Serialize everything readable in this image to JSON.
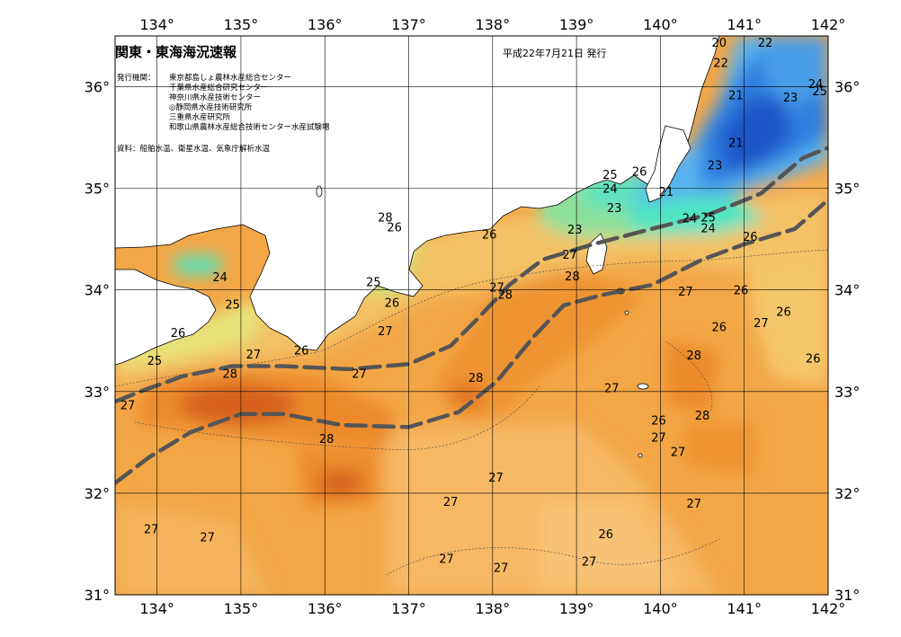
{
  "title": "関東・東海海況速報",
  "issue_date": "平成22年7月21日 発行",
  "publisher_label": "発行機関：",
  "publishers": [
    "東京都島しょ農林水産総合センター",
    "千葉県水産総合研究センター",
    "神奈川県水産技術センター",
    "◎静岡県水産技術研究所",
    "三重県水産研究所",
    "和歌山県農林水産総合技術センター水産試験場"
  ],
  "source": "資料：船舶水温、衛星水温、気象庁解析水温",
  "axes": {
    "lon_labels": [
      "134°",
      "135°",
      "136°",
      "137°",
      "138°",
      "139°",
      "140°",
      "141°",
      "142°"
    ],
    "lat_labels": [
      "36°",
      "35°",
      "34°",
      "33°",
      "32°",
      "31°"
    ],
    "lon_range": [
      133.5,
      142.0
    ],
    "lat_range": [
      31.0,
      36.5
    ]
  },
  "colors": {
    "t20": "#1c57c8",
    "t21": "#2d7ee0",
    "t22": "#58b2ef",
    "t23": "#8fd4ef",
    "t24": "#4fe6c2",
    "t25": "#b8ef7e",
    "t26": "#f5e276",
    "t27": "#f3b55a",
    "t28": "#ec8f2c",
    "t29": "#d6601a",
    "land": "#ffffff",
    "kuroshio": "#555555"
  },
  "isotherm_labels": [
    {
      "text": "20",
      "lon": 140.7,
      "lat": 36.44
    },
    {
      "text": "22",
      "lon": 141.25,
      "lat": 36.44
    },
    {
      "text": "22",
      "lon": 140.72,
      "lat": 36.24
    },
    {
      "text": "21",
      "lon": 140.9,
      "lat": 35.92
    },
    {
      "text": "24",
      "lon": 141.85,
      "lat": 36.03
    },
    {
      "text": "25",
      "lon": 141.9,
      "lat": 35.96
    },
    {
      "text": "23",
      "lon": 141.55,
      "lat": 35.9
    },
    {
      "text": "21",
      "lon": 140.9,
      "lat": 35.45
    },
    {
      "text": "23",
      "lon": 140.65,
      "lat": 35.23
    },
    {
      "text": "25",
      "lon": 139.4,
      "lat": 35.14
    },
    {
      "text": "26",
      "lon": 139.75,
      "lat": 35.17
    },
    {
      "text": "24",
      "lon": 139.4,
      "lat": 35.0
    },
    {
      "text": "21",
      "lon": 140.07,
      "lat": 34.97
    },
    {
      "text": "23",
      "lon": 139.45,
      "lat": 34.81
    },
    {
      "text": "24",
      "lon": 140.35,
      "lat": 34.71
    },
    {
      "text": "25",
      "lon": 140.57,
      "lat": 34.72
    },
    {
      "text": "24",
      "lon": 140.57,
      "lat": 34.61
    },
    {
      "text": "23",
      "lon": 138.98,
      "lat": 34.6
    },
    {
      "text": "26",
      "lon": 141.07,
      "lat": 34.53
    },
    {
      "text": "26",
      "lon": 137.96,
      "lat": 34.55
    },
    {
      "text": "28",
      "lon": 136.72,
      "lat": 34.72
    },
    {
      "text": "26",
      "lon": 136.83,
      "lat": 34.62
    },
    {
      "text": "24",
      "lon": 134.75,
      "lat": 34.13
    },
    {
      "text": "25",
      "lon": 136.58,
      "lat": 34.08
    },
    {
      "text": "27",
      "lon": 138.92,
      "lat": 34.35
    },
    {
      "text": "28",
      "lon": 138.95,
      "lat": 34.14
    },
    {
      "text": "27",
      "lon": 138.05,
      "lat": 34.03
    },
    {
      "text": "28",
      "lon": 138.15,
      "lat": 33.96
    },
    {
      "text": "25",
      "lon": 134.9,
      "lat": 33.86
    },
    {
      "text": "26",
      "lon": 136.8,
      "lat": 33.88
    },
    {
      "text": "27",
      "lon": 140.3,
      "lat": 33.99
    },
    {
      "text": "26",
      "lon": 140.96,
      "lat": 34.0
    },
    {
      "text": "26",
      "lon": 141.47,
      "lat": 33.79
    },
    {
      "text": "27",
      "lon": 141.2,
      "lat": 33.68
    },
    {
      "text": "26",
      "lon": 140.7,
      "lat": 33.64
    },
    {
      "text": "26",
      "lon": 134.25,
      "lat": 33.58
    },
    {
      "text": "27",
      "lon": 136.72,
      "lat": 33.6
    },
    {
      "text": "26",
      "lon": 135.72,
      "lat": 33.41
    },
    {
      "text": "25",
      "lon": 133.97,
      "lat": 33.31
    },
    {
      "text": "27",
      "lon": 135.15,
      "lat": 33.37
    },
    {
      "text": "28",
      "lon": 140.4,
      "lat": 33.36
    },
    {
      "text": "26",
      "lon": 141.82,
      "lat": 33.33
    },
    {
      "text": "28",
      "lon": 134.87,
      "lat": 33.18
    },
    {
      "text": "27",
      "lon": 136.41,
      "lat": 33.18
    },
    {
      "text": "28",
      "lon": 137.8,
      "lat": 33.14
    },
    {
      "text": "27",
      "lon": 139.42,
      "lat": 33.04
    },
    {
      "text": "27",
      "lon": 133.65,
      "lat": 32.87
    },
    {
      "text": "28",
      "lon": 140.5,
      "lat": 32.77
    },
    {
      "text": "26",
      "lon": 139.98,
      "lat": 32.72
    },
    {
      "text": "27",
      "lon": 139.98,
      "lat": 32.55
    },
    {
      "text": "27",
      "lon": 140.21,
      "lat": 32.41
    },
    {
      "text": "28",
      "lon": 136.02,
      "lat": 32.54
    },
    {
      "text": "27",
      "lon": 138.04,
      "lat": 32.16
    },
    {
      "text": "27",
      "lon": 140.4,
      "lat": 31.9
    },
    {
      "text": "27",
      "lon": 137.5,
      "lat": 31.92
    },
    {
      "text": "27",
      "lon": 133.93,
      "lat": 31.65
    },
    {
      "text": "27",
      "lon": 134.6,
      "lat": 31.57
    },
    {
      "text": "26",
      "lon": 139.35,
      "lat": 31.6
    },
    {
      "text": "27",
      "lon": 137.45,
      "lat": 31.36
    },
    {
      "text": "27",
      "lon": 138.1,
      "lat": 31.27
    },
    {
      "text": "27",
      "lon": 139.15,
      "lat": 31.33
    }
  ],
  "kuroshio_axes": [
    {
      "name": "north",
      "points": [
        [
          133.5,
          32.9
        ],
        [
          133.8,
          33.0
        ],
        [
          134.3,
          33.15
        ],
        [
          134.9,
          33.25
        ],
        [
          135.5,
          33.25
        ],
        [
          136.3,
          33.22
        ],
        [
          137.0,
          33.27
        ],
        [
          137.5,
          33.45
        ],
        [
          137.8,
          33.7
        ],
        [
          138.2,
          34.05
        ],
        [
          138.6,
          34.3
        ],
        [
          139.2,
          34.45
        ],
        [
          139.8,
          34.58
        ],
        [
          140.6,
          34.75
        ],
        [
          141.2,
          34.95
        ],
        [
          141.7,
          35.3
        ],
        [
          142.0,
          35.4
        ]
      ]
    },
    {
      "name": "south",
      "points": [
        [
          133.5,
          32.1
        ],
        [
          133.9,
          32.35
        ],
        [
          134.4,
          32.6
        ],
        [
          135.0,
          32.78
        ],
        [
          135.5,
          32.78
        ],
        [
          136.2,
          32.67
        ],
        [
          137.0,
          32.65
        ],
        [
          137.6,
          32.8
        ],
        [
          138.05,
          33.1
        ],
        [
          138.5,
          33.55
        ],
        [
          138.85,
          33.85
        ],
        [
          139.3,
          33.95
        ],
        [
          139.9,
          34.05
        ],
        [
          140.5,
          34.3
        ],
        [
          141.0,
          34.45
        ],
        [
          141.6,
          34.6
        ],
        [
          141.95,
          34.85
        ]
      ]
    }
  ]
}
